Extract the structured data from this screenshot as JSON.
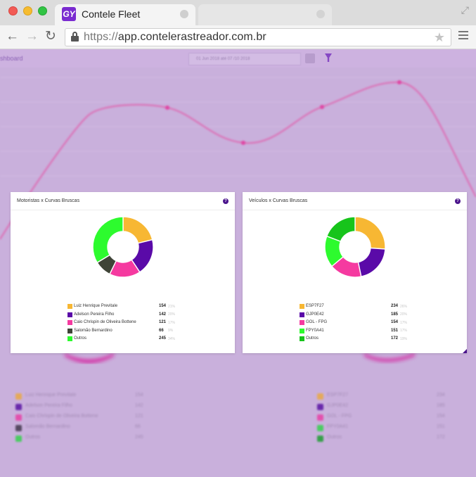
{
  "browser": {
    "tab_title": "Contele Fleet",
    "tab_logo": "GY",
    "url_protocol": "https://",
    "url_host": "app.contelerastreador.com.br"
  },
  "dashboard": {
    "title": "shboard",
    "date_range": "01 Jun 2018 até 07 /10 2018"
  },
  "colors": {
    "accent": "#4a148c",
    "orange": "#f7b733",
    "purple": "#5a0aa8",
    "pink": "#f53aa0",
    "dark": "#3f4437",
    "lime": "#2dfb2e",
    "green": "#17c41b"
  },
  "cards": [
    {
      "title": "Motoristas x Curvas Bruscas",
      "help": "?",
      "items": [
        {
          "label": "Luiz Henrique Previtale",
          "value": "154",
          "pct": "21%",
          "color": "#f7b733",
          "amount": 154
        },
        {
          "label": "Adelson Pereira Filho",
          "value": "142",
          "pct": "20%",
          "color": "#5a0aa8",
          "amount": 142
        },
        {
          "label": "Caio Chrispin de Oliveira Bottene",
          "value": "121",
          "pct": "17%",
          "color": "#f53aa0",
          "amount": 121
        },
        {
          "label": "Salomão Bernardino",
          "value": "66",
          "pct": "9%",
          "color": "#3f4437",
          "amount": 66
        },
        {
          "label": "Outros",
          "value": "245",
          "pct": "34%",
          "color": "#2dfb2e",
          "amount": 245
        }
      ]
    },
    {
      "title": "Veículos x Curvas Bruscas",
      "help": "?",
      "items": [
        {
          "label": "ESP7F27",
          "value": "234",
          "pct": "26%",
          "color": "#f7b733",
          "amount": 234
        },
        {
          "label": "GJP0E42",
          "value": "185",
          "pct": "20%",
          "color": "#5a0aa8",
          "amount": 185
        },
        {
          "label": "GOL - FPG",
          "value": "154",
          "pct": "17%",
          "color": "#f53aa0",
          "amount": 154
        },
        {
          "label": "FPY0A41",
          "value": "151",
          "pct": "17%",
          "color": "#2dfb2e",
          "amount": 151
        },
        {
          "label": "Outros",
          "value": "172",
          "pct": "19%",
          "color": "#17c41b",
          "amount": 172
        }
      ]
    }
  ]
}
